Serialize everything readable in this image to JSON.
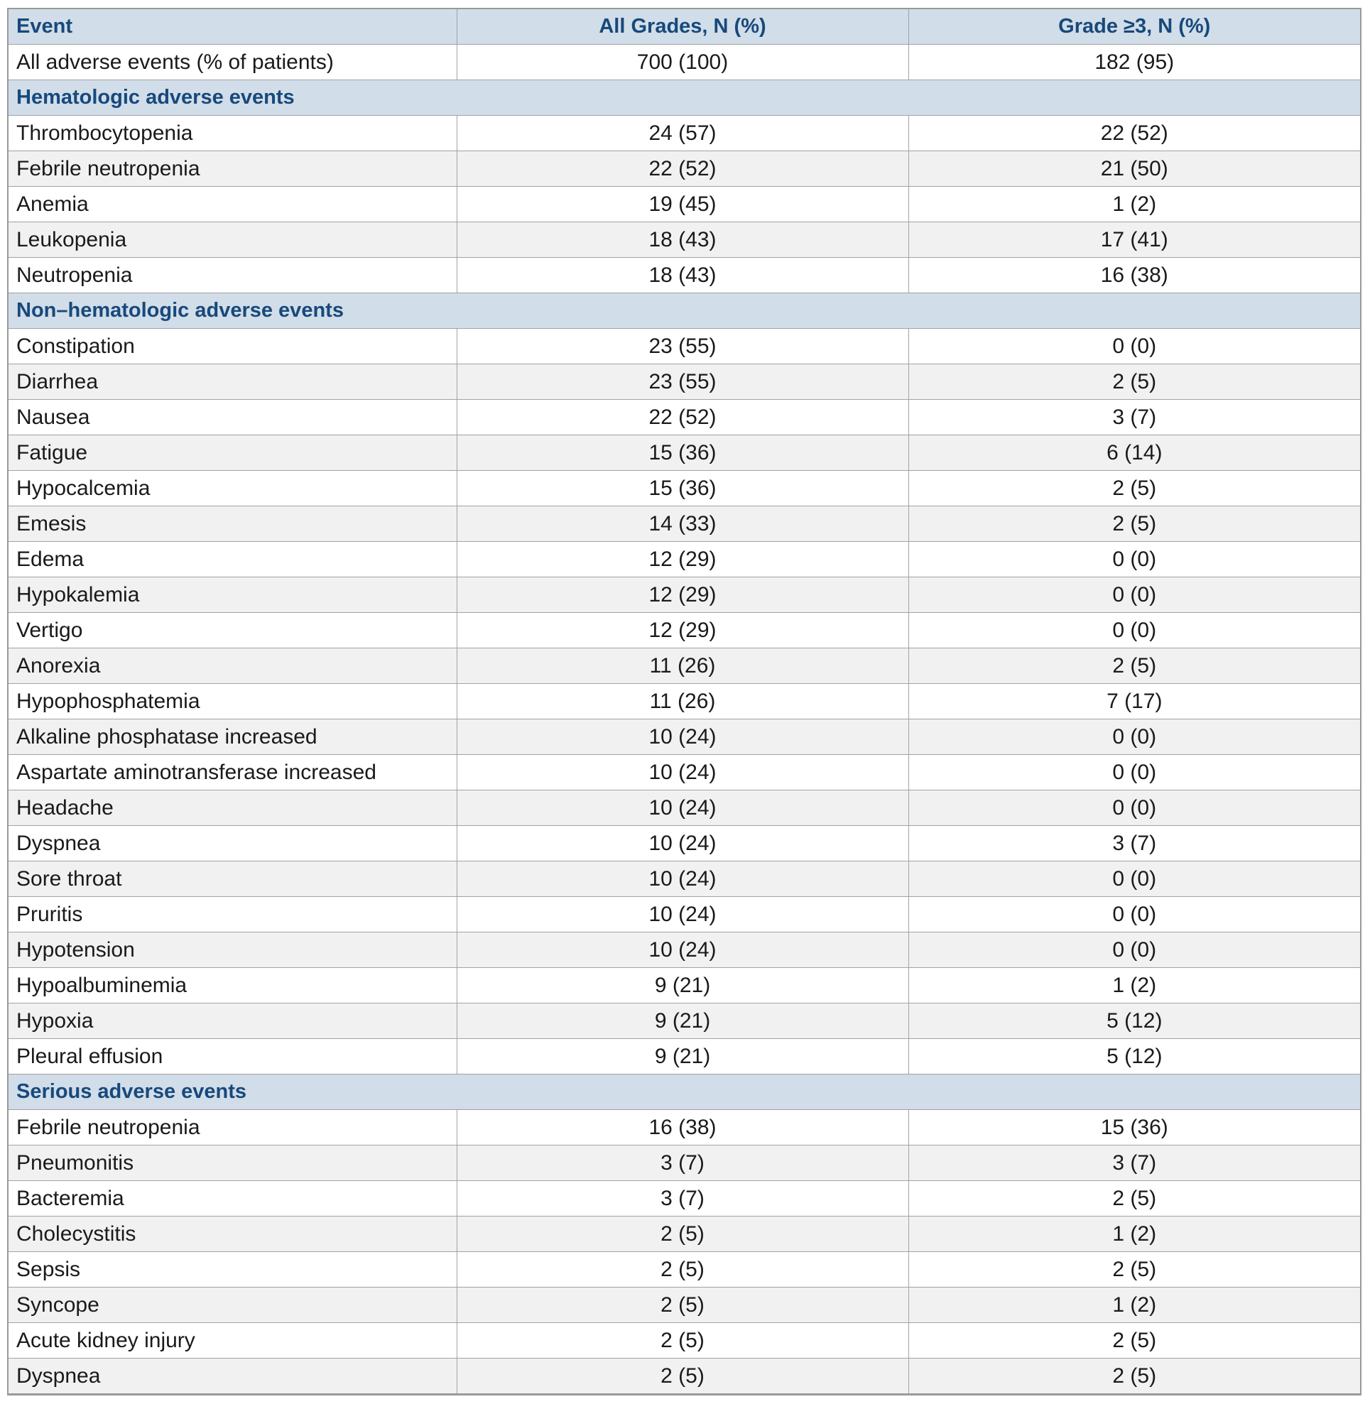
{
  "table": {
    "colors": {
      "header_bg": "#d1dde8",
      "header_text": "#17497c",
      "stripe": "#f1f1f1",
      "inner_border": "#a2a2a2",
      "outer_border": "#999999",
      "body_text": "#1a1a1a",
      "page_bg": "#ffffff"
    },
    "columns": [
      {
        "key": "event",
        "label": "Event",
        "align": "left"
      },
      {
        "key": "all_grades",
        "label": "All Grades, N (%)",
        "align": "center"
      },
      {
        "key": "grade3",
        "label": "Grade ≥3, N (%)",
        "align": "center"
      }
    ],
    "rows": [
      {
        "type": "data",
        "event": "All adverse events (% of patients)",
        "all_grades": "700 (100)",
        "grade3": "182 (95)"
      },
      {
        "type": "section",
        "label": "Hematologic adverse events"
      },
      {
        "type": "data",
        "event": "Thrombocytopenia",
        "all_grades": "24 (57)",
        "grade3": "22 (52)"
      },
      {
        "type": "data",
        "event": "Febrile neutropenia",
        "all_grades": "22 (52)",
        "grade3": "21 (50)"
      },
      {
        "type": "data",
        "event": "Anemia",
        "all_grades": "19 (45)",
        "grade3": "1 (2)"
      },
      {
        "type": "data",
        "event": "Leukopenia",
        "all_grades": "18 (43)",
        "grade3": "17 (41)"
      },
      {
        "type": "data",
        "event": "Neutropenia",
        "all_grades": "18 (43)",
        "grade3": "16 (38)"
      },
      {
        "type": "section",
        "label": "Non–hematologic adverse events"
      },
      {
        "type": "data",
        "event": "Constipation",
        "all_grades": "23 (55)",
        "grade3": "0 (0)"
      },
      {
        "type": "data",
        "event": "Diarrhea",
        "all_grades": "23 (55)",
        "grade3": "2 (5)"
      },
      {
        "type": "data",
        "event": "Nausea",
        "all_grades": "22 (52)",
        "grade3": "3 (7)"
      },
      {
        "type": "data",
        "event": "Fatigue",
        "all_grades": "15 (36)",
        "grade3": "6 (14)"
      },
      {
        "type": "data",
        "event": "Hypocalcemia",
        "all_grades": "15 (36)",
        "grade3": "2 (5)"
      },
      {
        "type": "data",
        "event": "Emesis",
        "all_grades": "14 (33)",
        "grade3": "2 (5)"
      },
      {
        "type": "data",
        "event": "Edema",
        "all_grades": "12 (29)",
        "grade3": "0 (0)"
      },
      {
        "type": "data",
        "event": "Hypokalemia",
        "all_grades": "12 (29)",
        "grade3": "0 (0)"
      },
      {
        "type": "data",
        "event": "Vertigo",
        "all_grades": "12 (29)",
        "grade3": "0 (0)"
      },
      {
        "type": "data",
        "event": "Anorexia",
        "all_grades": "11 (26)",
        "grade3": "2 (5)"
      },
      {
        "type": "data",
        "event": "Hypophosphatemia",
        "all_grades": "11 (26)",
        "grade3": "7 (17)"
      },
      {
        "type": "data",
        "event": "Alkaline phosphatase increased",
        "all_grades": "10 (24)",
        "grade3": "0 (0)"
      },
      {
        "type": "data",
        "event": "Aspartate aminotransferase increased",
        "all_grades": "10 (24)",
        "grade3": "0 (0)"
      },
      {
        "type": "data",
        "event": "Headache",
        "all_grades": "10 (24)",
        "grade3": "0 (0)"
      },
      {
        "type": "data",
        "event": "Dyspnea",
        "all_grades": "10 (24)",
        "grade3": "3 (7)"
      },
      {
        "type": "data",
        "event": "Sore throat",
        "all_grades": "10 (24)",
        "grade3": "0 (0)"
      },
      {
        "type": "data",
        "event": "Pruritis",
        "all_grades": "10 (24)",
        "grade3": "0 (0)"
      },
      {
        "type": "data",
        "event": "Hypotension",
        "all_grades": "10 (24)",
        "grade3": "0 (0)"
      },
      {
        "type": "data",
        "event": "Hypoalbuminemia",
        "all_grades": "9 (21)",
        "grade3": "1 (2)"
      },
      {
        "type": "data",
        "event": "Hypoxia",
        "all_grades": "9 (21)",
        "grade3": "5 (12)"
      },
      {
        "type": "data",
        "event": "Pleural effusion",
        "all_grades": "9 (21)",
        "grade3": "5 (12)"
      },
      {
        "type": "section",
        "label": "Serious adverse events"
      },
      {
        "type": "data",
        "event": "Febrile neutropenia",
        "all_grades": "16 (38)",
        "grade3": "15 (36)"
      },
      {
        "type": "data",
        "event": "Pneumonitis",
        "all_grades": "3 (7)",
        "grade3": "3 (7)"
      },
      {
        "type": "data",
        "event": "Bacteremia",
        "all_grades": "3 (7)",
        "grade3": "2 (5)"
      },
      {
        "type": "data",
        "event": "Cholecystitis",
        "all_grades": "2 (5)",
        "grade3": "1 (2)"
      },
      {
        "type": "data",
        "event": "Sepsis",
        "all_grades": "2 (5)",
        "grade3": "2 (5)"
      },
      {
        "type": "data",
        "event": "Syncope",
        "all_grades": "2 (5)",
        "grade3": "1 (2)"
      },
      {
        "type": "data",
        "event": "Acute kidney injury",
        "all_grades": "2 (5)",
        "grade3": "2 (5)"
      },
      {
        "type": "data",
        "event": "Dyspnea",
        "all_grades": "2 (5)",
        "grade3": "2 (5)"
      }
    ]
  }
}
